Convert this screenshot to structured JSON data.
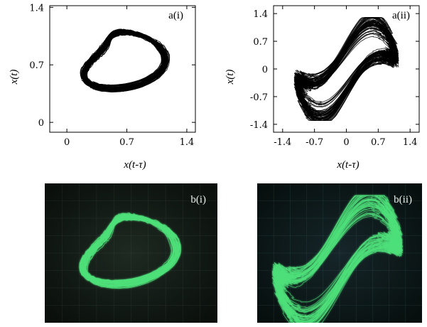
{
  "chart_data": [
    {
      "type": "scatter",
      "panel_label": "a(i)",
      "xlabel": "x(t-τ)",
      "ylabel": "x(t)",
      "xlim": [
        -0.2,
        1.5
      ],
      "ylim": [
        -0.12,
        1.42
      ],
      "xticks": [
        "0",
        "0.7",
        "1.4"
      ],
      "yticks": [
        "0",
        "0.7",
        "1.4"
      ],
      "xtick_values": [
        0,
        0.7,
        1.4
      ],
      "ytick_values": [
        0,
        0.7,
        1.4
      ],
      "color": "#000000",
      "rendering": "chaotic attractor trajectory (black lines)"
    },
    {
      "type": "scatter",
      "panel_label": "a(ii)",
      "xlabel": "x(t-τ)",
      "ylabel": "x(t)",
      "xlim": [
        -1.6,
        1.6
      ],
      "ylim": [
        -1.6,
        1.6
      ],
      "xticks": [
        "-1.4",
        "-0.7",
        "0",
        "0.7",
        "1.4"
      ],
      "yticks": [
        "-1.4",
        "-0.7",
        "0",
        "0.7",
        "1.4"
      ],
      "xtick_values": [
        -1.4,
        -0.7,
        0,
        0.7,
        1.4
      ],
      "ytick_values": [
        -1.4,
        -0.7,
        0,
        0.7,
        1.4
      ],
      "color": "#000000",
      "rendering": "chaotic attractor trajectory (black lines)"
    },
    {
      "type": "image",
      "panel_label": "b(i)",
      "rendering": "oscilloscope photograph, green trace on dark screen",
      "trace_color": "#4fe07a",
      "background_color": "#101612"
    },
    {
      "type": "image",
      "panel_label": "b(ii)",
      "rendering": "oscilloscope photograph, green trace on dark screen",
      "trace_color": "#4fe07a",
      "background_color": "#0b1513"
    }
  ]
}
